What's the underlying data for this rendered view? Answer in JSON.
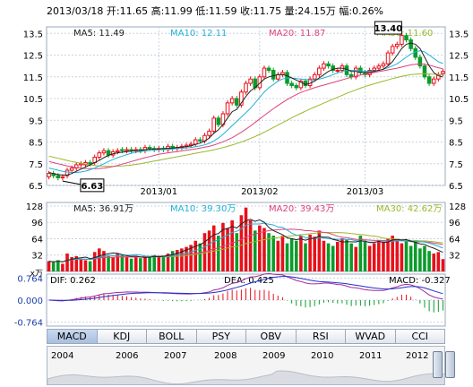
{
  "header": {
    "text": "2013/03/18 开:11.65 高:11.99 低:11.59 收:11.75 量:24.15万 幅:0.26%"
  },
  "colors": {
    "up": "#e8101a",
    "down": "#0a9c2a",
    "ma5": "#222222",
    "ma10": "#22b0d5",
    "ma20": "#e0407a",
    "ma30": "#9ab82a",
    "dif": "#a02a9e",
    "dea": "#2030c8",
    "grid": "#c9d3e0"
  },
  "price_panel": {
    "ma5_label": "MA5: 11.49",
    "ma10_label": "MA10: 12.11",
    "ma20_label": "MA20: 11.87",
    "ma30_label": "MA30: 11.60",
    "high_marker": "13.40",
    "low_marker": "6.63",
    "y_ticks": [
      "13.5",
      "12.5",
      "11.5",
      "10.5",
      "9.5",
      "8.5",
      "7.5",
      "6.5"
    ],
    "x_ticks": [
      "2013/01",
      "2013/02",
      "2013/03"
    ]
  },
  "volume_panel": {
    "ma5_label": "MA5: 36.91万",
    "ma10_label": "MA10: 39.30万",
    "ma20_label": "MA20: 39.43万",
    "ma30_label": "MA30: 42.62万",
    "y_ticks": [
      "128",
      "96",
      "64",
      "32"
    ],
    "unit": "x万"
  },
  "macd_panel": {
    "dif_label": "DIF: 0.262",
    "dea_label": "DEA: 0.425",
    "macd_label": "MACD: -0.327",
    "y_ticks": [
      "0.764",
      "0.000",
      "-0.764"
    ]
  },
  "tabs": [
    "MACD",
    "KDJ",
    "BOLL",
    "PSY",
    "OBV",
    "RSI",
    "WVAD",
    "CCI"
  ],
  "timeline_years": [
    "2004",
    "2006",
    "2007",
    "2008",
    "2009",
    "2010",
    "2011",
    "2012"
  ],
  "chart_data": {
    "type": "candlestick",
    "title": "",
    "ylim": [
      6.5,
      13.8
    ],
    "close": [
      7.05,
      6.95,
      6.85,
      6.9,
      7.2,
      7.3,
      7.45,
      7.5,
      7.55,
      7.5,
      7.8,
      8.0,
      8.1,
      7.9,
      8.05,
      8.1,
      8.1,
      8.15,
      8.1,
      8.15,
      8.1,
      8.25,
      8.2,
      8.15,
      8.2,
      8.15,
      8.3,
      8.2,
      8.25,
      8.3,
      8.35,
      8.4,
      8.6,
      8.55,
      8.8,
      9.0,
      9.6,
      9.3,
      9.8,
      10.3,
      10.5,
      10.2,
      10.8,
      11.2,
      11.4,
      11.0,
      11.5,
      11.9,
      11.8,
      11.4,
      11.6,
      11.7,
      11.2,
      11.1,
      11.0,
      11.3,
      11.1,
      11.4,
      11.6,
      11.9,
      12.1,
      12.0,
      11.8,
      11.8,
      12.0,
      11.6,
      11.5,
      11.9,
      11.7,
      11.6,
      11.8,
      11.9,
      12.0,
      12.1,
      12.6,
      12.9,
      13.0,
      13.4,
      13.2,
      12.8,
      12.4,
      12.0,
      11.5,
      11.2,
      11.4,
      11.6,
      11.75
    ],
    "open": [
      6.9,
      7.05,
      6.95,
      6.85,
      6.95,
      7.2,
      7.3,
      7.45,
      7.45,
      7.55,
      7.55,
      7.8,
      8.0,
      8.1,
      7.9,
      8.05,
      8.15,
      8.1,
      8.15,
      8.1,
      8.15,
      8.1,
      8.25,
      8.2,
      8.15,
      8.2,
      8.15,
      8.3,
      8.2,
      8.25,
      8.3,
      8.35,
      8.4,
      8.6,
      8.55,
      8.8,
      9.0,
      9.6,
      9.3,
      9.8,
      10.3,
      10.5,
      10.2,
      10.8,
      11.2,
      11.4,
      11.0,
      11.5,
      11.9,
      11.8,
      11.4,
      11.6,
      11.7,
      11.2,
      11.1,
      11.0,
      11.3,
      11.1,
      11.4,
      11.6,
      11.9,
      12.1,
      12.0,
      11.8,
      11.8,
      12.0,
      11.6,
      11.5,
      11.9,
      11.7,
      11.6,
      11.8,
      11.9,
      12.0,
      12.1,
      12.6,
      12.9,
      13.0,
      13.4,
      13.2,
      12.8,
      12.4,
      12.0,
      11.5,
      11.2,
      11.4,
      11.65
    ],
    "ma5": [
      7.1,
      7.05,
      7.0,
      6.98,
      6.98,
      7.05,
      7.15,
      7.25,
      7.35,
      7.45,
      7.55,
      7.65,
      7.78,
      7.88,
      7.96,
      8.0,
      8.03,
      8.06,
      8.08,
      8.1,
      8.12,
      8.15,
      8.17,
      8.18,
      8.18,
      8.2,
      8.21,
      8.22,
      8.24,
      8.26,
      8.28,
      8.32,
      8.39,
      8.45,
      8.54,
      8.68,
      8.9,
      9.06,
      9.3,
      9.6,
      9.9,
      10.0,
      10.3,
      10.6,
      10.85,
      11.0,
      11.2,
      11.4,
      11.5,
      11.55,
      11.6,
      11.6,
      11.55,
      11.45,
      11.35,
      11.25,
      11.15,
      11.2,
      11.3,
      11.45,
      11.6,
      11.75,
      11.85,
      11.9,
      11.9,
      11.85,
      11.75,
      11.75,
      11.7,
      11.7,
      11.7,
      11.75,
      11.8,
      11.85,
      12.0,
      12.2,
      12.5,
      12.8,
      13.0,
      13.05,
      13.0,
      12.8,
      12.4,
      12.0,
      11.7,
      11.55,
      11.49
    ],
    "ma10": [
      7.3,
      7.25,
      7.2,
      7.15,
      7.12,
      7.1,
      7.1,
      7.12,
      7.16,
      7.22,
      7.3,
      7.4,
      7.5,
      7.6,
      7.7,
      7.78,
      7.85,
      7.92,
      7.98,
      8.03,
      8.06,
      8.09,
      8.11,
      8.13,
      8.14,
      8.15,
      8.16,
      8.18,
      8.19,
      8.21,
      8.23,
      8.25,
      8.28,
      8.32,
      8.37,
      8.44,
      8.55,
      8.68,
      8.85,
      9.05,
      9.25,
      9.45,
      9.65,
      9.85,
      10.05,
      10.3,
      10.55,
      10.8,
      11.0,
      11.15,
      11.3,
      11.4,
      11.45,
      11.45,
      11.42,
      11.4,
      11.38,
      11.36,
      11.36,
      11.4,
      11.45,
      11.52,
      11.6,
      11.68,
      11.75,
      11.8,
      11.8,
      11.8,
      11.78,
      11.76,
      11.76,
      11.77,
      11.8,
      11.85,
      11.92,
      12.0,
      12.1,
      12.25,
      12.4,
      12.55,
      12.65,
      12.7,
      12.65,
      12.5,
      12.35,
      12.2,
      12.11
    ],
    "ma20": [
      7.6,
      7.55,
      7.5,
      7.45,
      7.4,
      7.36,
      7.32,
      7.3,
      7.28,
      7.27,
      7.27,
      7.28,
      7.3,
      7.33,
      7.37,
      7.42,
      7.48,
      7.54,
      7.6,
      7.66,
      7.72,
      7.78,
      7.83,
      7.88,
      7.93,
      7.97,
      8.0,
      8.03,
      8.06,
      8.09,
      8.12,
      8.15,
      8.18,
      8.22,
      8.26,
      8.3,
      8.36,
      8.43,
      8.51,
      8.6,
      8.7,
      8.82,
      8.95,
      9.09,
      9.24,
      9.4,
      9.56,
      9.72,
      9.88,
      10.03,
      10.18,
      10.32,
      10.45,
      10.57,
      10.68,
      10.78,
      10.86,
      10.93,
      11.0,
      11.06,
      11.12,
      11.18,
      11.24,
      11.3,
      11.36,
      11.42,
      11.48,
      11.53,
      11.58,
      11.62,
      11.66,
      11.7,
      11.74,
      11.78,
      11.82,
      11.86,
      11.9,
      11.95,
      12.0,
      12.05,
      12.08,
      12.1,
      12.08,
      12.04,
      11.98,
      11.92,
      11.87
    ],
    "ma30": [
      7.85,
      7.8,
      7.75,
      7.7,
      7.65,
      7.6,
      7.56,
      7.52,
      7.48,
      7.45,
      7.42,
      7.4,
      7.39,
      7.38,
      7.38,
      7.39,
      7.4,
      7.42,
      7.44,
      7.47,
      7.5,
      7.54,
      7.58,
      7.62,
      7.66,
      7.7,
      7.74,
      7.78,
      7.82,
      7.86,
      7.9,
      7.94,
      7.98,
      8.02,
      8.06,
      8.1,
      8.14,
      8.19,
      8.24,
      8.3,
      8.36,
      8.43,
      8.5,
      8.58,
      8.66,
      8.75,
      8.85,
      8.95,
      9.06,
      9.17,
      9.28,
      9.39,
      9.5,
      9.61,
      9.72,
      9.82,
      9.92,
      10.02,
      10.11,
      10.2,
      10.29,
      10.38,
      10.47,
      10.56,
      10.65,
      10.74,
      10.82,
      10.9,
      10.98,
      11.05,
      11.12,
      11.18,
      11.24,
      11.3,
      11.36,
      11.42,
      11.47,
      11.52,
      11.56,
      11.6,
      11.62,
      11.64,
      11.64,
      11.63,
      11.62,
      11.61,
      11.6
    ],
    "volume": [
      20,
      18,
      22,
      15,
      35,
      28,
      30,
      25,
      22,
      20,
      38,
      45,
      40,
      30,
      28,
      35,
      32,
      28,
      25,
      30,
      26,
      28,
      30,
      32,
      28,
      30,
      35,
      40,
      42,
      45,
      48,
      52,
      60,
      55,
      75,
      80,
      90,
      70,
      95,
      85,
      100,
      75,
      110,
      125,
      100,
      80,
      90,
      85,
      75,
      70,
      60,
      70,
      55,
      65,
      60,
      70,
      55,
      72,
      68,
      80,
      60,
      55,
      50,
      58,
      65,
      62,
      55,
      48,
      70,
      60,
      50,
      55,
      60,
      58,
      65,
      70,
      60,
      55,
      62,
      50,
      58,
      45,
      50,
      40,
      35,
      38,
      24.15
    ]
  }
}
